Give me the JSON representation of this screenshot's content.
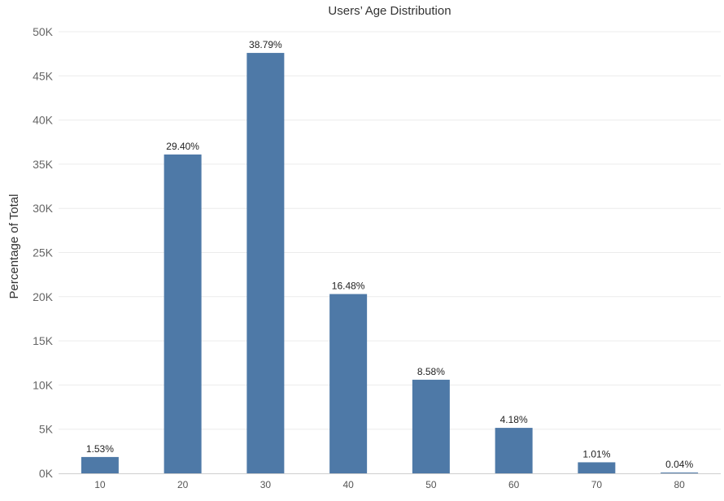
{
  "chart_data": {
    "type": "bar",
    "title": "Users’ Age Distribution",
    "ylabel": "Percentage of Total",
    "xlabel": "",
    "categories": [
      "10",
      "20",
      "30",
      "40",
      "50",
      "60",
      "70",
      "80"
    ],
    "values": [
      1850,
      36100,
      47600,
      20300,
      10600,
      5150,
      1250,
      60
    ],
    "data_labels": [
      "1.53%",
      "29.40%",
      "38.79%",
      "16.48%",
      "8.58%",
      "4.18%",
      "1.01%",
      "0.04%"
    ],
    "ylim": [
      0,
      50000
    ],
    "yticks": [
      0,
      5000,
      10000,
      15000,
      20000,
      25000,
      30000,
      35000,
      40000,
      45000,
      50000
    ],
    "ytick_labels": [
      "0K",
      "5K",
      "10K",
      "15K",
      "20K",
      "25K",
      "30K",
      "35K",
      "40K",
      "45K",
      "50K"
    ],
    "grid": true,
    "legend": "none",
    "bar_color": "#4e79a7"
  }
}
